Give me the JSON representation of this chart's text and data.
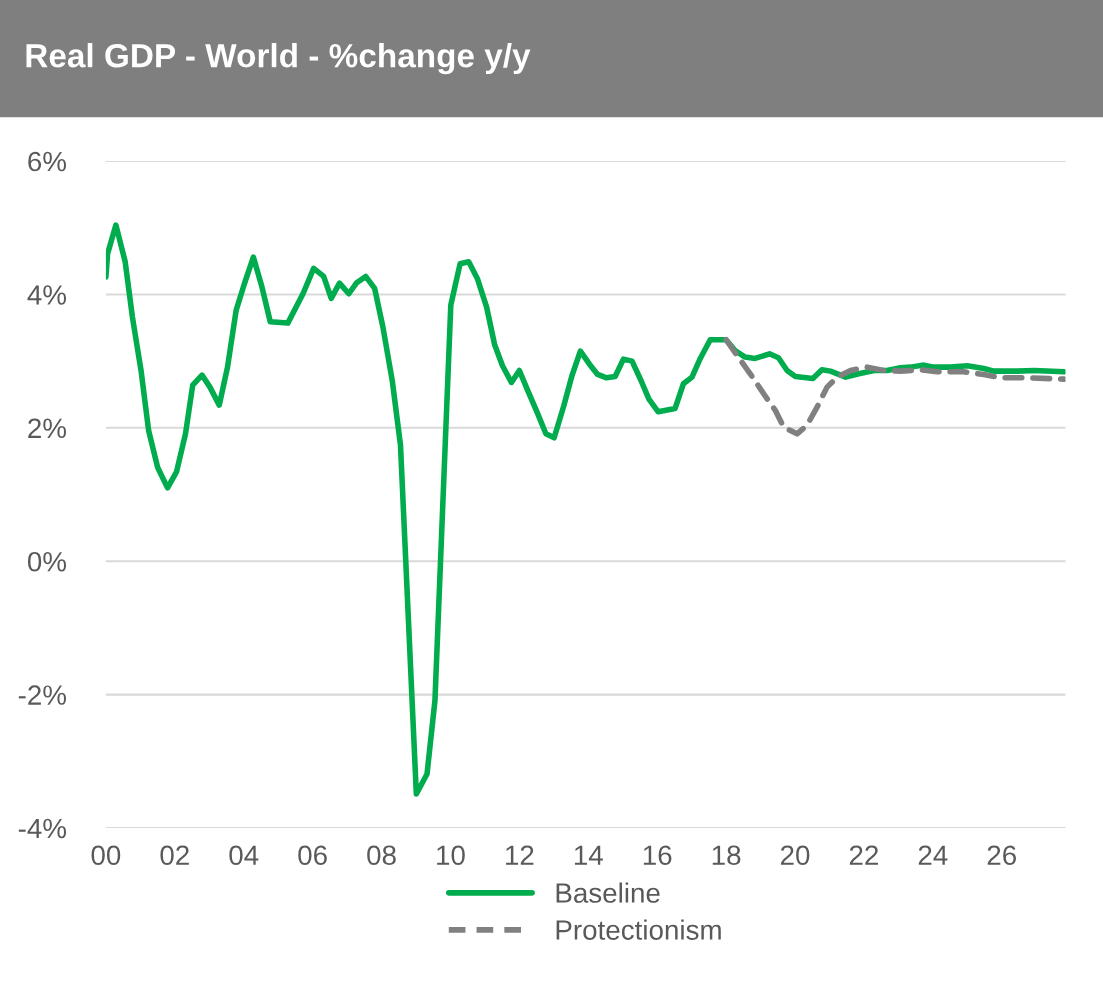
{
  "chart_data": {
    "type": "line",
    "title": "Real GDP - World - %change y/y",
    "series": [
      {
        "name": "Baseline",
        "color": "#00ac4e",
        "line_style": "solid",
        "x": [
          2000.0,
          2000.05,
          2000.29,
          2000.56,
          2000.77,
          2001.02,
          2001.24,
          2001.5,
          2001.79,
          2002.05,
          2002.31,
          2002.52,
          2002.79,
          2003.02,
          2003.29,
          2003.53,
          2003.78,
          2004.02,
          2004.28,
          2004.53,
          2004.77,
          2005.28,
          2005.72,
          2006.03,
          2006.32,
          2006.54,
          2006.78,
          2007.05,
          2007.27,
          2007.54,
          2007.8,
          2008.04,
          2008.31,
          2008.55,
          2009.01,
          2009.32,
          2009.55,
          2010.01,
          2010.28,
          2010.53,
          2010.78,
          2011.05,
          2011.28,
          2011.51,
          2011.77,
          2012.0,
          2012.26,
          2012.51,
          2012.77,
          2013.01,
          2013.29,
          2013.52,
          2013.77,
          2014.04,
          2014.27,
          2014.53,
          2014.78,
          2015.02,
          2015.27,
          2015.53,
          2015.76,
          2016.03,
          2016.52,
          2016.76,
          2017.01,
          2017.25,
          2017.54,
          2018.0,
          2018.26,
          2018.55,
          2018.84,
          2019.26,
          2019.52,
          2019.77,
          2020.01,
          2020.52,
          2020.78,
          2021.03,
          2021.47,
          2021.85,
          2022.29,
          2022.67,
          2023.06,
          2023.35,
          2023.74,
          2024.03,
          2024.51,
          2025.0,
          2025.48,
          2025.77,
          2026.45,
          2026.94,
          2027.81
        ],
        "values": [
          4.26,
          4.61,
          5.04,
          4.49,
          3.66,
          2.86,
          1.96,
          1.41,
          1.1,
          1.34,
          1.91,
          2.64,
          2.79,
          2.61,
          2.34,
          2.91,
          3.76,
          4.16,
          4.56,
          4.11,
          3.59,
          3.57,
          4.01,
          4.39,
          4.27,
          3.94,
          4.17,
          4.01,
          4.17,
          4.27,
          4.09,
          3.51,
          2.71,
          1.74,
          -3.49,
          -3.19,
          -2.09,
          3.84,
          4.46,
          4.49,
          4.24,
          3.81,
          3.25,
          2.93,
          2.68,
          2.86,
          2.54,
          2.24,
          1.91,
          1.85,
          2.33,
          2.77,
          3.15,
          2.95,
          2.8,
          2.75,
          2.77,
          3.03,
          3.0,
          2.71,
          2.43,
          2.24,
          2.29,
          2.66,
          2.76,
          3.04,
          3.32,
          3.32,
          3.16,
          3.06,
          3.04,
          3.11,
          3.05,
          2.86,
          2.77,
          2.74,
          2.87,
          2.85,
          2.76,
          2.81,
          2.86,
          2.86,
          2.9,
          2.91,
          2.94,
          2.91,
          2.91,
          2.93,
          2.89,
          2.85,
          2.85,
          2.86,
          2.84
        ]
      },
      {
        "name": "Protectionism",
        "color": "#808080",
        "line_style": "dashed",
        "x": [
          2018.0,
          2018.31,
          2018.7,
          2019.09,
          2019.43,
          2019.67,
          2020.06,
          2020.35,
          2020.64,
          2020.93,
          2021.22,
          2021.61,
          2022.09,
          2022.58,
          2023.06,
          2023.64,
          2024.13,
          2024.9,
          2025.48,
          2025.97,
          2026.74,
          2027.81
        ],
        "values": [
          3.32,
          3.09,
          2.81,
          2.51,
          2.26,
          2.01,
          1.91,
          2.04,
          2.31,
          2.61,
          2.76,
          2.86,
          2.91,
          2.86,
          2.85,
          2.87,
          2.84,
          2.84,
          2.8,
          2.75,
          2.75,
          2.73
        ]
      }
    ],
    "xlim": [
      2000,
      2027.85
    ],
    "xticks": [
      {
        "value": 2000,
        "label": "00"
      },
      {
        "value": 2002,
        "label": "02"
      },
      {
        "value": 2004,
        "label": "04"
      },
      {
        "value": 2006,
        "label": "06"
      },
      {
        "value": 2008,
        "label": "08"
      },
      {
        "value": 2010,
        "label": "10"
      },
      {
        "value": 2012,
        "label": "12"
      },
      {
        "value": 2014,
        "label": "14"
      },
      {
        "value": 2016,
        "label": "16"
      },
      {
        "value": 2018,
        "label": "18"
      },
      {
        "value": 2020,
        "label": "20"
      },
      {
        "value": 2022,
        "label": "22"
      },
      {
        "value": 2024,
        "label": "24"
      },
      {
        "value": 2026,
        "label": "26"
      }
    ],
    "ylim": [
      -4,
      6
    ],
    "yticks": [
      {
        "value": -4,
        "label": "-4%"
      },
      {
        "value": -2,
        "label": "-2%"
      },
      {
        "value": 0,
        "label": "0%"
      },
      {
        "value": 2,
        "label": "2%"
      },
      {
        "value": 4,
        "label": "4%"
      },
      {
        "value": 6,
        "label": "6%"
      }
    ],
    "grid": "y",
    "legend": "bottom",
    "marker": "none"
  }
}
